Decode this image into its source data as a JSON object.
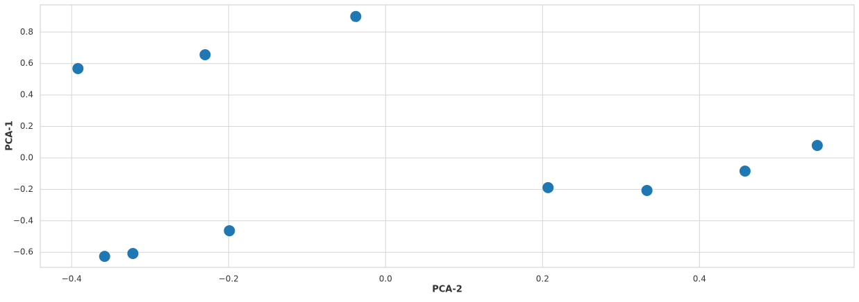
{
  "chart_data": {
    "type": "scatter",
    "xlabel": "PCA-2",
    "ylabel": "PCA-1",
    "x": [
      -0.392,
      -0.23,
      -0.038,
      -0.358,
      -0.322,
      -0.199,
      0.207,
      0.333,
      0.458,
      0.55
    ],
    "values": [
      0.568,
      0.656,
      0.899,
      -0.626,
      -0.608,
      -0.463,
      -0.189,
      -0.207,
      -0.084,
      0.079
    ],
    "color": "#1f77b4",
    "xlim": [
      -0.44,
      0.597
    ],
    "ylim": [
      -0.696,
      0.973
    ],
    "xticks": [
      {
        "value": -0.4,
        "label": "−0.4"
      },
      {
        "value": -0.2,
        "label": "−0.2"
      },
      {
        "value": 0,
        "label": "0.0"
      },
      0.2,
      0.4
    ],
    "yticks": [
      {
        "value": -0.6,
        "label": "−0.6"
      },
      {
        "value": -0.4,
        "label": "−0.4"
      },
      {
        "value": -0.2,
        "label": "−0.2"
      },
      {
        "value": 0,
        "label": "0.0"
      },
      0.2,
      0.4,
      0.6,
      0.8
    ],
    "grid": true
  }
}
